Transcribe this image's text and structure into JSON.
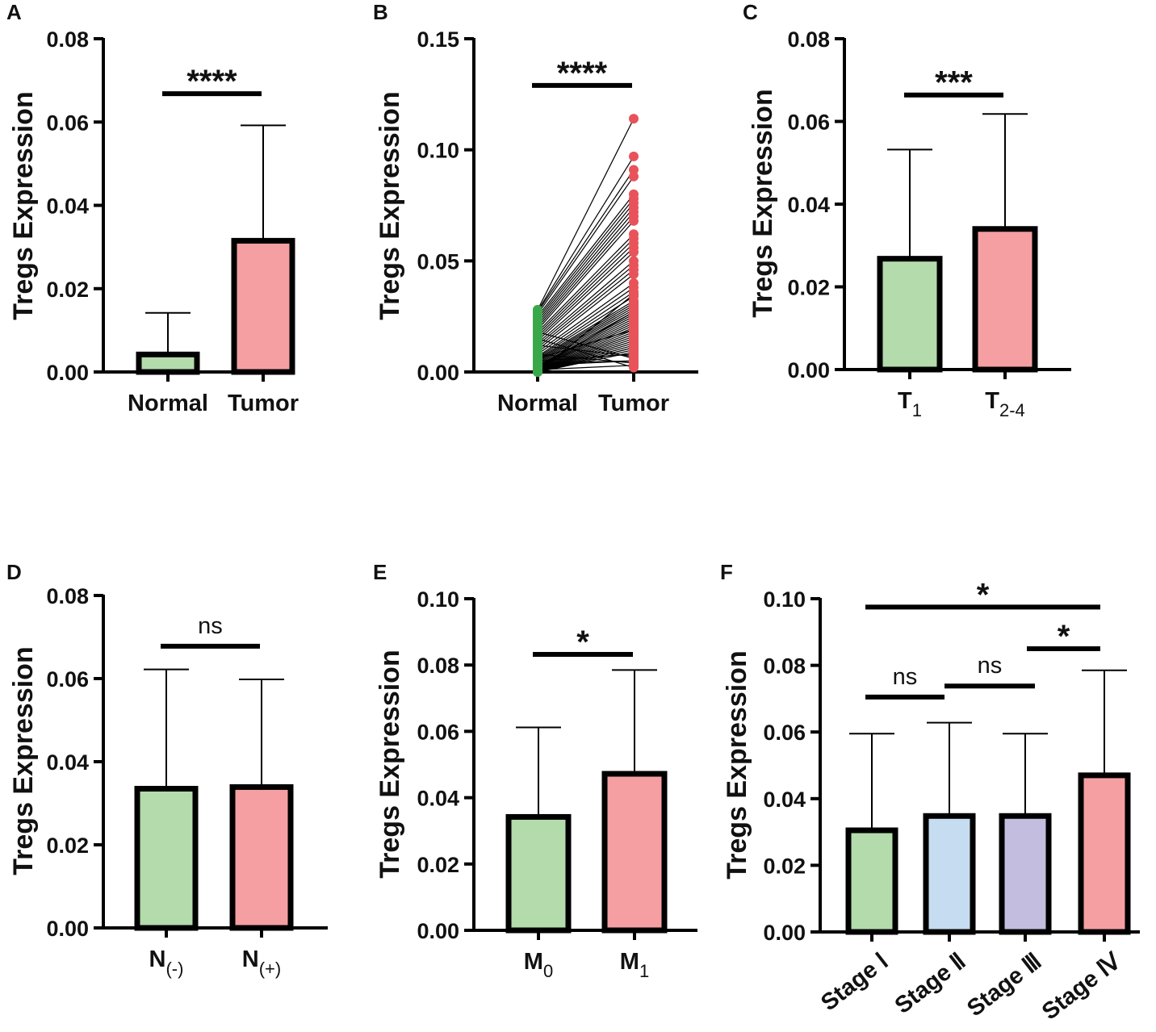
{
  "chart_data": [
    {
      "panel": "A",
      "type": "bar",
      "ylabel": "Tregs Expression",
      "ylim": [
        0,
        0.08
      ],
      "yticks": [
        "0.00",
        "0.02",
        "0.04",
        "0.06",
        "0.08"
      ],
      "categories": [
        "Normal",
        "Tumor"
      ],
      "values": [
        0.0042,
        0.0315
      ],
      "errors_upper": [
        0.0142,
        0.0592
      ],
      "colors": [
        "#b3dbab",
        "#f59fa2"
      ],
      "significance": [
        {
          "from": 0,
          "to": 1,
          "label": "****",
          "y": 0.0668
        }
      ]
    },
    {
      "panel": "B",
      "type": "scatter",
      "ylabel": "Tregs Expression",
      "ylim": [
        0,
        0.15
      ],
      "yticks": [
        "0.00",
        "0.05",
        "0.10",
        "0.15"
      ],
      "categories": [
        "Normal",
        "Tumor"
      ],
      "colors": [
        "#3aa84a",
        "#e8535a"
      ],
      "normal_values": [
        0.028,
        0.0275,
        0.027,
        0.026,
        0.025,
        0.024,
        0.023,
        0.022,
        0.021,
        0.02,
        0.019,
        0.018,
        0.017,
        0.016,
        0.015,
        0.014,
        0.013,
        0.012,
        0.011,
        0.01,
        0.009,
        0.008,
        0.007,
        0.0065,
        0.006,
        0.0055,
        0.005,
        0.0045,
        0.004,
        0.0035,
        0.003,
        0.0028,
        0.0025,
        0.0022,
        0.002,
        0.0018,
        0.0015,
        0.0012,
        0.001,
        0.0008,
        0.0006,
        0.0005,
        0.0004,
        0.0003,
        0.0002,
        0.0001,
        0.0,
        0.0,
        0.005,
        0.012,
        0.018,
        0.003,
        0.008,
        0.001,
        0.015,
        0.0,
        0.002,
        0.006,
        0.0,
        0.004
      ],
      "tumor_values": [
        0.114,
        0.097,
        0.091,
        0.088,
        0.08,
        0.078,
        0.076,
        0.074,
        0.072,
        0.07,
        0.068,
        0.062,
        0.06,
        0.058,
        0.056,
        0.054,
        0.05,
        0.048,
        0.046,
        0.044,
        0.04,
        0.038,
        0.036,
        0.034,
        0.032,
        0.031,
        0.03,
        0.029,
        0.028,
        0.027,
        0.026,
        0.025,
        0.024,
        0.023,
        0.022,
        0.021,
        0.02,
        0.019,
        0.018,
        0.017,
        0.016,
        0.015,
        0.014,
        0.013,
        0.012,
        0.011,
        0.01,
        0.009,
        0.008,
        0.007,
        0.006,
        0.005,
        0.004,
        0.003,
        0.002,
        0.035,
        0.027,
        0.019,
        0.011,
        0.005
      ],
      "significance": [
        {
          "from": 0,
          "to": 1,
          "label": "****",
          "y": 0.129
        }
      ]
    },
    {
      "panel": "C",
      "type": "bar",
      "ylabel": "Tregs Expression",
      "ylim": [
        0,
        0.08
      ],
      "yticks": [
        "0.00",
        "0.02",
        "0.04",
        "0.06",
        "0.08"
      ],
      "categories": [
        {
          "main": "T",
          "sub": "1"
        },
        {
          "main": "T",
          "sub": "2-4"
        }
      ],
      "values": [
        0.0268,
        0.034
      ],
      "errors_upper": [
        0.0532,
        0.0618
      ],
      "colors": [
        "#b3dbab",
        "#f59fa2"
      ],
      "significance": [
        {
          "from": 0,
          "to": 1,
          "label": "***",
          "y": 0.0664
        }
      ]
    },
    {
      "panel": "D",
      "type": "bar",
      "ylabel": "Tregs Expression",
      "ylim": [
        0,
        0.08
      ],
      "yticks": [
        "0.00",
        "0.02",
        "0.04",
        "0.06",
        "0.08"
      ],
      "categories": [
        {
          "main": "N",
          "sub": "(-)"
        },
        {
          "main": "N",
          "sub": "(+)"
        }
      ],
      "values": [
        0.0335,
        0.0339
      ],
      "errors_upper": [
        0.0622,
        0.0598
      ],
      "colors": [
        "#b3dbab",
        "#f59fa2"
      ],
      "significance": [
        {
          "from": 0,
          "to": 1,
          "label": "ns",
          "y": 0.0678
        }
      ]
    },
    {
      "panel": "E",
      "type": "bar",
      "ylabel": "Tregs Expression",
      "ylim": [
        0,
        0.1
      ],
      "yticks": [
        "0.00",
        "0.02",
        "0.04",
        "0.06",
        "0.08",
        "0.10"
      ],
      "categories": [
        {
          "main": "M",
          "sub": "0"
        },
        {
          "main": "M",
          "sub": "1"
        }
      ],
      "values": [
        0.0342,
        0.0472
      ],
      "errors_upper": [
        0.0612,
        0.0785
      ],
      "colors": [
        "#b3dbab",
        "#f59fa2"
      ],
      "significance": [
        {
          "from": 0,
          "to": 1,
          "label": "*",
          "y": 0.0832
        }
      ]
    },
    {
      "panel": "F",
      "type": "bar",
      "ylabel": "Tregs Expression",
      "ylim": [
        0,
        0.1
      ],
      "yticks": [
        "0.00",
        "0.02",
        "0.04",
        "0.06",
        "0.08",
        "0.10"
      ],
      "categories": [
        "Stage Ⅰ",
        "Stage Ⅱ",
        "Stage Ⅲ",
        "Stage Ⅳ"
      ],
      "values": [
        0.0305,
        0.0348,
        0.0348,
        0.047
      ],
      "errors_upper": [
        0.0595,
        0.0628,
        0.0595,
        0.0785
      ],
      "colors": [
        "#b3dbab",
        "#c6dcf0",
        "#c3bde0",
        "#f59fa2"
      ],
      "significance": [
        {
          "from": 0,
          "to": 3,
          "label": "*",
          "y": 0.0975
        },
        {
          "from": 2,
          "to": 3,
          "label": "*",
          "y": 0.085
        },
        {
          "from": 0,
          "to": 1,
          "label": "ns",
          "y": 0.0705
        },
        {
          "from": 1,
          "to": 2,
          "label": "ns",
          "y": 0.0738
        }
      ]
    }
  ]
}
